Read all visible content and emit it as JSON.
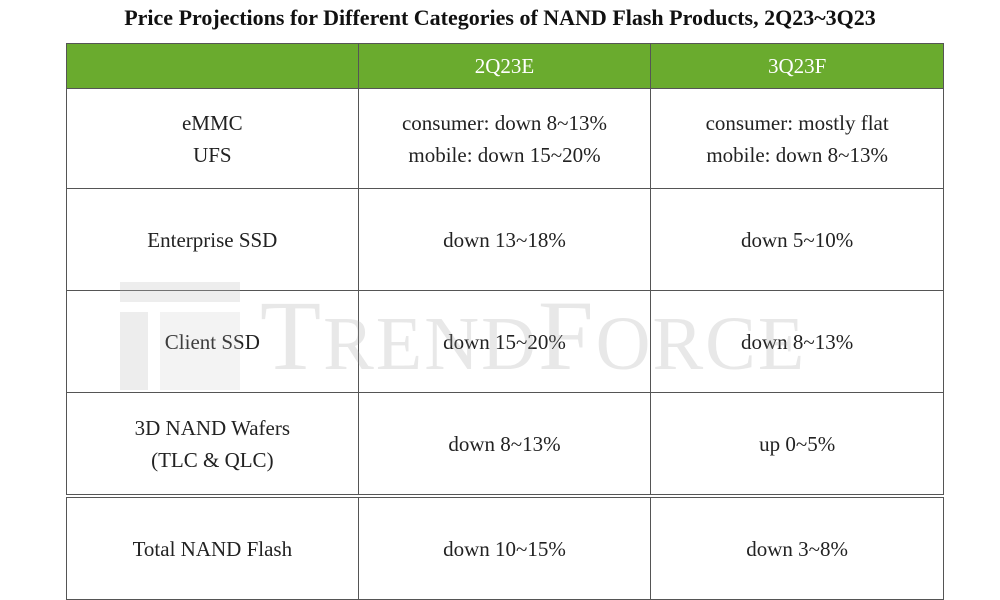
{
  "title": "Price Projections for Different Categories of NAND Flash Products, 2Q23~3Q23",
  "watermark": {
    "text_big": "T",
    "text_rest_1": "REND",
    "text_big_2": "F",
    "text_rest_2": "ORCE"
  },
  "header": {
    "category": "",
    "q2": "2Q23E",
    "q3": "3Q23F"
  },
  "rows": [
    {
      "category_lines": [
        "eMMC",
        "UFS"
      ],
      "q2_lines": [
        "consumer: down 8~13%",
        "mobile: down 15~20%"
      ],
      "q3_lines": [
        "consumer: mostly flat",
        "mobile: down 8~13%"
      ]
    },
    {
      "category_lines": [
        "Enterprise SSD"
      ],
      "q2_lines": [
        "down 13~18%"
      ],
      "q3_lines": [
        "down 5~10%"
      ]
    },
    {
      "category_lines": [
        "Client SSD"
      ],
      "q2_lines": [
        "down 15~20%"
      ],
      "q3_lines": [
        "down 8~13%"
      ]
    },
    {
      "category_lines": [
        "3D NAND Wafers",
        "(TLC & QLC)"
      ],
      "q2_lines": [
        "down 8~13%"
      ],
      "q3_lines": [
        "up 0~5%"
      ]
    },
    {
      "category_lines": [
        "Total NAND Flash"
      ],
      "q2_lines": [
        "down 10~15%"
      ],
      "q3_lines": [
        "down 3~8%"
      ]
    }
  ],
  "colors": {
    "header_bg": "#6aab2e",
    "header_text": "#ffffff",
    "border": "#555555"
  }
}
